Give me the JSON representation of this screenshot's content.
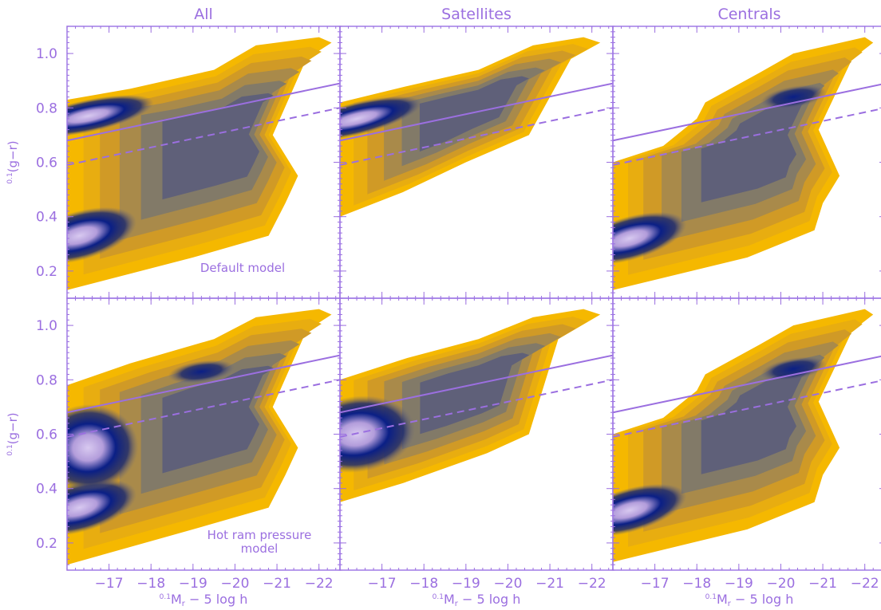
{
  "chart_data": {
    "type": "heatmap",
    "column_titles": [
      "All",
      "Satellites",
      "Centrals"
    ],
    "row_labels": [
      "Default model",
      "Hot ram pressure model"
    ],
    "row_label_lines": [
      [
        "Default model"
      ],
      [
        "Hot ram pressure",
        "model"
      ]
    ],
    "xlabel": "⁰·¹M_r − 5 log h",
    "xlabel_parts": {
      "sup": "0.1",
      "main": "M",
      "sub": "r",
      "rest": "− 5 log h"
    },
    "ylabel": "⁰·¹(g−r)",
    "ylabel_parts": {
      "sup": "0.1",
      "main": "(g−r)"
    },
    "xlim": [
      -16,
      -22.5
    ],
    "ylim": [
      0.1,
      1.1
    ],
    "x_ticks": [
      -17,
      -18,
      -19,
      -20,
      -21,
      -22
    ],
    "x_tick_labels": [
      "−17",
      "−18",
      "−19",
      "−20",
      "−21",
      "−22"
    ],
    "y_ticks": [
      0.2,
      0.4,
      0.6,
      0.8,
      1.0
    ],
    "y_tick_labels": [
      "0.2",
      "0.4",
      "0.6",
      "0.8",
      "1.0"
    ],
    "lines": [
      {
        "style": "solid",
        "x": [
          -16,
          -22.5
        ],
        "y": [
          0.68,
          0.89
        ]
      },
      {
        "style": "dashed",
        "x": [
          -16,
          -22.5
        ],
        "y": [
          0.59,
          0.8
        ]
      }
    ],
    "colors": {
      "accent": "#9b6fe0",
      "low_density": "#f5b800",
      "mid_density": "#6e6a7a",
      "high_density": "#0a1f86",
      "peak_density": "#c9b7e8"
    },
    "panels": [
      {
        "row": 0,
        "col": 0,
        "outer": [
          [
            -16,
            0.13
          ],
          [
            -19,
            0.25
          ],
          [
            -20.8,
            0.33
          ],
          [
            -21.2,
            0.45
          ],
          [
            -21.5,
            0.55
          ],
          [
            -20.9,
            0.7
          ],
          [
            -21.7,
            0.98
          ],
          [
            -22.3,
            1.04
          ],
          [
            -22,
            1.06
          ],
          [
            -20.5,
            1.03
          ],
          [
            -19.5,
            0.94
          ],
          [
            -17.5,
            0.87
          ],
          [
            -16,
            0.83
          ]
        ],
        "blobs": [
          [
            -16.3,
            0.33,
            1.4,
            0.09,
            -16
          ],
          [
            -16.5,
            0.77,
            1.6,
            0.06,
            -12
          ]
        ]
      },
      {
        "row": 0,
        "col": 1,
        "outer": [
          [
            -16,
            0.4
          ],
          [
            -17.5,
            0.49
          ],
          [
            -19,
            0.6
          ],
          [
            -20.5,
            0.7
          ],
          [
            -21.5,
            0.98
          ],
          [
            -22.2,
            1.04
          ],
          [
            -21.8,
            1.06
          ],
          [
            -20.6,
            1.03
          ],
          [
            -19.3,
            0.94
          ],
          [
            -17.6,
            0.88
          ],
          [
            -16,
            0.82
          ]
        ],
        "blobs": [
          [
            -16.4,
            0.76,
            1.6,
            0.06,
            -14
          ]
        ]
      },
      {
        "row": 0,
        "col": 2,
        "outer": [
          [
            -16,
            0.13
          ],
          [
            -19.2,
            0.25
          ],
          [
            -20.8,
            0.35
          ],
          [
            -21,
            0.45
          ],
          [
            -21.4,
            0.55
          ],
          [
            -20.9,
            0.72
          ],
          [
            -21.7,
            0.98
          ],
          [
            -22.2,
            1.04
          ],
          [
            -22,
            1.06
          ],
          [
            -20.3,
            1.0
          ],
          [
            -19.5,
            0.93
          ],
          [
            -18.2,
            0.82
          ],
          [
            -18,
            0.76
          ],
          [
            -17.2,
            0.66
          ],
          [
            -16,
            0.6
          ]
        ],
        "blobs": [
          [
            -16.4,
            0.32,
            1.4,
            0.08,
            -16
          ],
          [
            -20.3,
            0.84,
            0.8,
            0.04,
            -10
          ]
        ]
      },
      {
        "row": 1,
        "col": 0,
        "outer": [
          [
            -16,
            0.12
          ],
          [
            -19,
            0.25
          ],
          [
            -20.8,
            0.33
          ],
          [
            -21.2,
            0.45
          ],
          [
            -21.5,
            0.55
          ],
          [
            -20.9,
            0.7
          ],
          [
            -21.7,
            0.98
          ],
          [
            -22.3,
            1.04
          ],
          [
            -22,
            1.06
          ],
          [
            -20.5,
            1.03
          ],
          [
            -19.5,
            0.95
          ],
          [
            -17.5,
            0.86
          ],
          [
            -16,
            0.78
          ]
        ],
        "blobs": [
          [
            -16.3,
            0.33,
            1.4,
            0.09,
            -16
          ],
          [
            -16.5,
            0.55,
            1.2,
            0.16,
            -6
          ],
          [
            -19.2,
            0.83,
            0.8,
            0.04,
            -8
          ]
        ]
      },
      {
        "row": 1,
        "col": 1,
        "outer": [
          [
            -16,
            0.35
          ],
          [
            -17.5,
            0.42
          ],
          [
            -19.5,
            0.53
          ],
          [
            -20.5,
            0.6
          ],
          [
            -21.2,
            0.95
          ],
          [
            -22.2,
            1.04
          ],
          [
            -21.8,
            1.06
          ],
          [
            -20.6,
            1.03
          ],
          [
            -19.3,
            0.95
          ],
          [
            -17.6,
            0.88
          ],
          [
            -16,
            0.8
          ]
        ],
        "blobs": [
          [
            -16.4,
            0.6,
            1.4,
            0.14,
            -8
          ]
        ]
      },
      {
        "row": 1,
        "col": 2,
        "outer": [
          [
            -16,
            0.13
          ],
          [
            -19.2,
            0.25
          ],
          [
            -20.8,
            0.35
          ],
          [
            -21,
            0.45
          ],
          [
            -21.4,
            0.55
          ],
          [
            -20.9,
            0.72
          ],
          [
            -21.7,
            0.98
          ],
          [
            -22.2,
            1.04
          ],
          [
            -22,
            1.06
          ],
          [
            -20.3,
            1.0
          ],
          [
            -19.5,
            0.93
          ],
          [
            -18.2,
            0.82
          ],
          [
            -18,
            0.76
          ],
          [
            -17.2,
            0.66
          ],
          [
            -16,
            0.6
          ]
        ],
        "blobs": [
          [
            -16.4,
            0.32,
            1.4,
            0.08,
            -16
          ],
          [
            -20.3,
            0.84,
            0.8,
            0.04,
            -10
          ]
        ]
      }
    ]
  }
}
